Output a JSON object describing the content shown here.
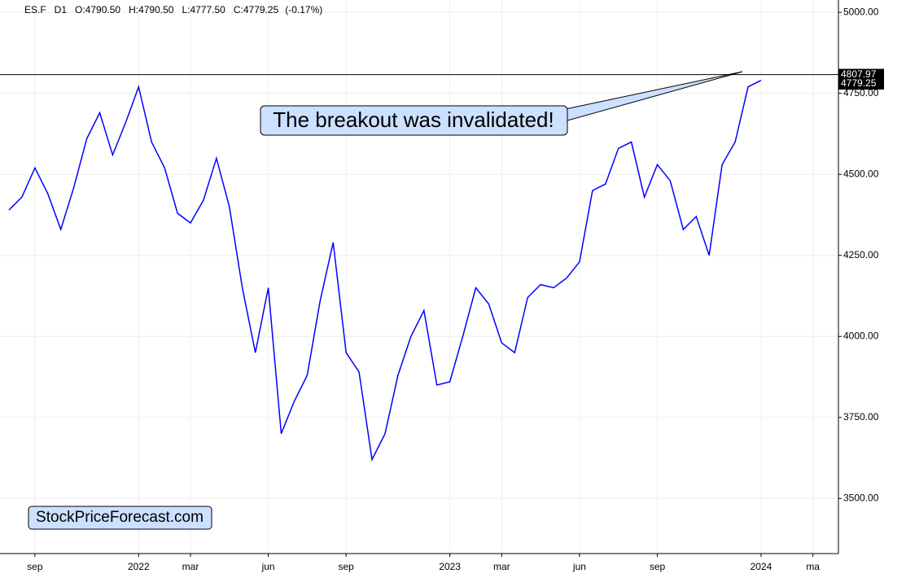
{
  "chart_data": {
    "type": "line",
    "header": {
      "symbol": "ES.F",
      "timeframe": "D1",
      "open": "O:4790.50",
      "high": "H:4790.50",
      "low": "L:4777.50",
      "close": "C:4779.25",
      "change": "(-0.17%)"
    },
    "annotation": "The breakout was invalidated!",
    "watermark": "StockPriceForecast.com",
    "categories": [
      null,
      null,
      "sep",
      null,
      null,
      null,
      null,
      null,
      null,
      null,
      "2022",
      null,
      null,
      null,
      "mar",
      null,
      null,
      null,
      null,
      null,
      "jun",
      null,
      null,
      null,
      null,
      null,
      "sep",
      null,
      null,
      null,
      null,
      null,
      null,
      null,
      "2023",
      null,
      null,
      null,
      "mar",
      null,
      null,
      null,
      null,
      null,
      "jun",
      null,
      null,
      null,
      null,
      null,
      "sep",
      null,
      null,
      null,
      null,
      null,
      null,
      null,
      "2024",
      null,
      null,
      null,
      "ma"
    ],
    "series": [
      {
        "name": "ES.F",
        "color": "#0000ff",
        "values": [
          4390,
          4430,
          4520,
          4440,
          4330,
          4460,
          4610,
          4690,
          4560,
          4660,
          4770,
          4600,
          4520,
          4380,
          4350,
          4420,
          4550,
          4400,
          4150,
          3950,
          4150,
          3700,
          3800,
          3880,
          4110,
          4290,
          3950,
          3890,
          3620,
          3700,
          3880,
          4000,
          4080,
          3850,
          3860,
          4000,
          4150,
          4100,
          3980,
          3950,
          4120,
          4160,
          4150,
          4180,
          4230,
          4450,
          4470,
          4580,
          4600,
          4430,
          4530,
          4480,
          4330,
          4370,
          4250,
          4530,
          4600,
          4770,
          4790,
          null,
          null,
          null,
          null
        ]
      }
    ],
    "price_line": {
      "value": 4807.97,
      "label": "4807.97"
    },
    "last_price": {
      "value": 4779.25,
      "label": "4779.25"
    },
    "ylim": [
      3330,
      5038
    ],
    "yticks": [
      {
        "value": 3500,
        "label": "3500.00"
      },
      {
        "value": 3750,
        "label": "3750.00"
      },
      {
        "value": 4000,
        "label": "4000.00"
      },
      {
        "value": 4250,
        "label": "4250.00"
      },
      {
        "value": 4500,
        "label": "4500.00"
      },
      {
        "value": 4750,
        "label": "4750.00"
      },
      {
        "value": 5000,
        "label": "5000.00"
      }
    ],
    "grid": true
  }
}
